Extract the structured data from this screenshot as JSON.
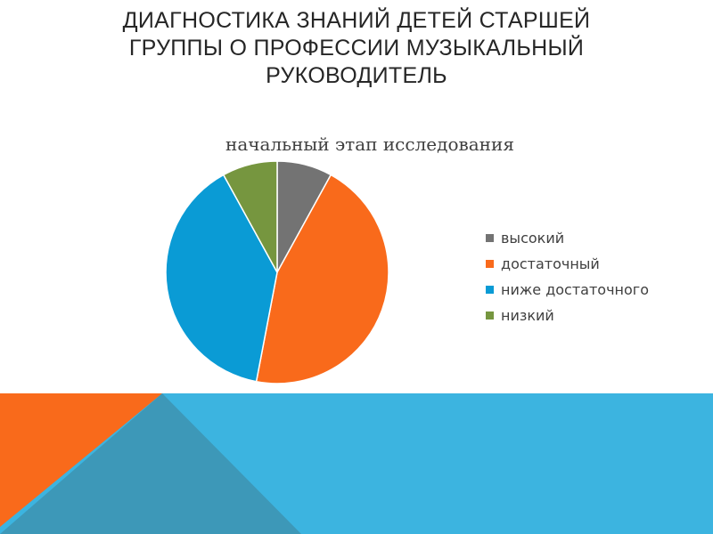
{
  "slide": {
    "title_lines": [
      "ДИАГНОСТИКА ЗНАНИЙ ДЕТЕЙ СТАРШЕЙ",
      "ГРУППЫ О ПРОФЕССИИ МУЗЫКАЛЬНЫЙ",
      "РУКОВОДИТЕЛЬ"
    ]
  },
  "chart_data": {
    "type": "pie",
    "title": "начальный этап исследования",
    "categories": [
      "высокий",
      "достаточный",
      "ниже достаточного",
      "низкий"
    ],
    "values": [
      8,
      45,
      39,
      8
    ],
    "colors": [
      "#737373",
      "#f96a1b",
      "#0a9bd5",
      "#76963f"
    ],
    "legend": "right"
  },
  "decor": {
    "colors": {
      "footer_blue": "#3cb4e0",
      "footer_orange": "#f96a1b",
      "footer_teal": "#3d98b8"
    }
  }
}
